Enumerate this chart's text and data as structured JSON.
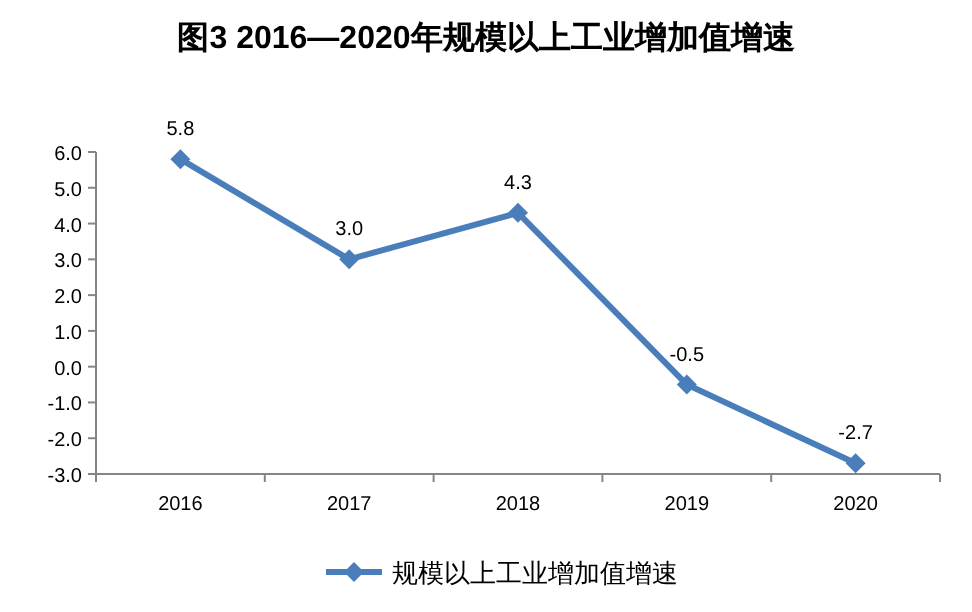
{
  "chart_data": {
    "type": "line",
    "title": "图3  2016—2020年规模以上工业增加值增速",
    "categories": [
      "2016",
      "2017",
      "2018",
      "2019",
      "2020"
    ],
    "series": [
      {
        "name": "规模以上工业增加值增速",
        "color": "#4a7ebb",
        "values": [
          5.8,
          3.0,
          4.3,
          -0.5,
          -2.7
        ],
        "value_labels": [
          "5.8",
          "3.0",
          "4.3",
          "-0.5",
          "-2.7"
        ]
      }
    ],
    "ylim": [
      -3,
      6
    ],
    "yticks": [
      {
        "value": -3,
        "label": "-3.0"
      },
      {
        "value": -2,
        "label": "-2.0"
      },
      {
        "value": -1,
        "label": "-1.0"
      },
      {
        "value": 0,
        "label": "0.0"
      },
      {
        "value": 1,
        "label": "1.0"
      },
      {
        "value": 2,
        "label": "2.0"
      },
      {
        "value": 3,
        "label": "3.0"
      },
      {
        "value": 4,
        "label": "4.0"
      },
      {
        "value": 5,
        "label": "5.0"
      },
      {
        "value": 6,
        "label": "6.0"
      }
    ],
    "grid": false,
    "legend": "bottom",
    "marker": "diamond",
    "line_style": "solid"
  }
}
